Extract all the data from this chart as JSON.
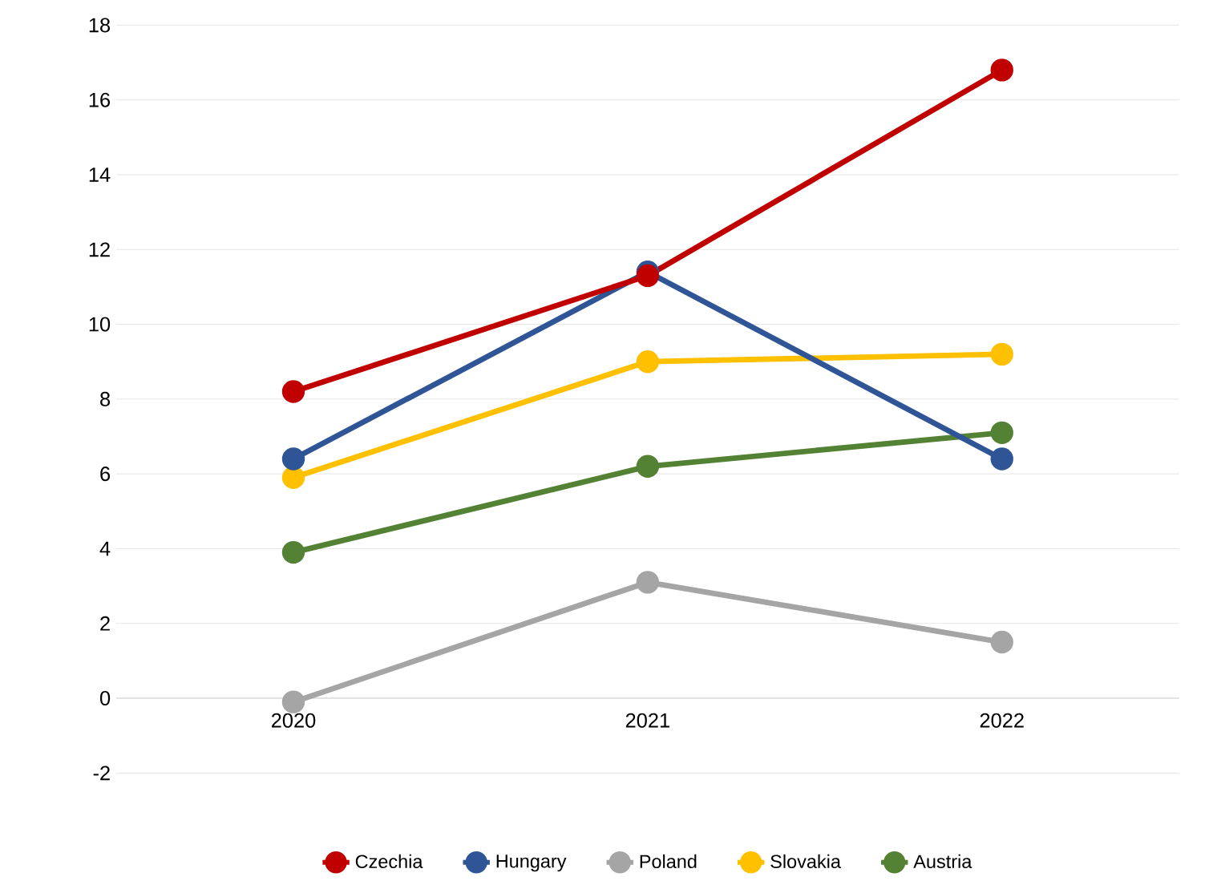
{
  "chart_data": {
    "type": "line",
    "categories": [
      "2020",
      "2021",
      "2022"
    ],
    "series": [
      {
        "name": "Czechia",
        "color": "#c00000",
        "values": [
          8.2,
          11.3,
          16.8
        ]
      },
      {
        "name": "Hungary",
        "color": "#2f5597",
        "values": [
          6.4,
          11.4,
          6.4
        ]
      },
      {
        "name": "Poland",
        "color": "#a5a5a5",
        "values": [
          -0.1,
          3.1,
          1.5
        ]
      },
      {
        "name": "Slovakia",
        "color": "#ffc000",
        "values": [
          5.9,
          9.0,
          9.2
        ]
      },
      {
        "name": "Austria",
        "color": "#548235",
        "values": [
          3.9,
          6.2,
          7.1
        ]
      }
    ],
    "ylim": [
      -2,
      18
    ],
    "yticks": [
      -2,
      0,
      2,
      4,
      6,
      8,
      10,
      12,
      14,
      16,
      18
    ],
    "grid": "y",
    "legend": "bottom",
    "marker": "circle",
    "line_style": "solid"
  }
}
